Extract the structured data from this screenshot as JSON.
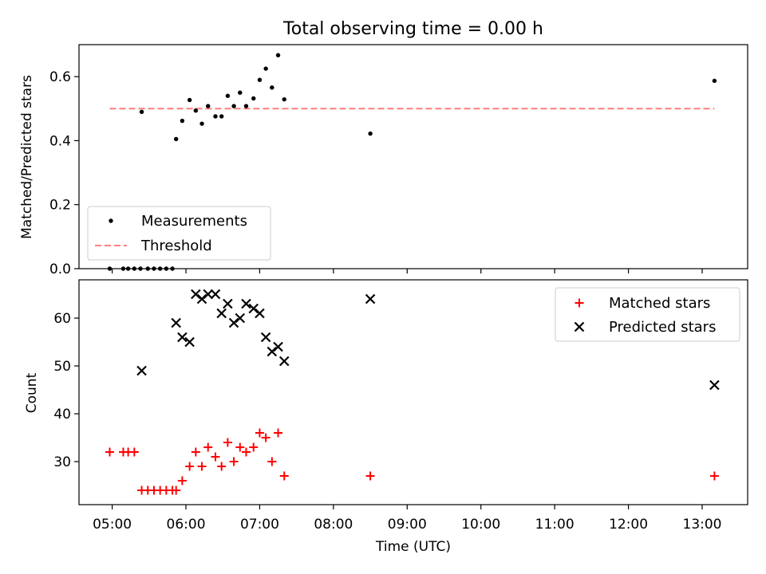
{
  "figure": {
    "title": "Total observing time = 0.00 h",
    "xlabel": "Time (UTC)"
  },
  "chart_data": [
    {
      "type": "scatter",
      "ylabel": "Matched/Predicted stars",
      "ylim": [
        0,
        0.7
      ],
      "yticks": [
        "0.0",
        "0.2",
        "0.4",
        "0.6"
      ],
      "ytick_values": [
        0,
        0.2,
        0.4,
        0.6
      ],
      "xlim": [
        "04:33",
        "13:37"
      ],
      "grid": false,
      "legend": {
        "placement": "lower-left",
        "entries": [
          "Measurements",
          "Threshold"
        ]
      },
      "threshold": {
        "name": "Threshold",
        "value": 0.5,
        "x_range": [
          "04:58",
          "13:10"
        ],
        "color": "#ff7f7f"
      },
      "series": [
        {
          "name": "Measurements",
          "color": "#000000",
          "points": [
            [
              "04:58",
              0.0
            ],
            [
              "05:09",
              0.0
            ],
            [
              "05:13",
              0.0
            ],
            [
              "05:18",
              0.0
            ],
            [
              "05:23",
              0.0
            ],
            [
              "05:24",
              0.49
            ],
            [
              "05:29",
              0.0
            ],
            [
              "05:34",
              0.0
            ],
            [
              "05:39",
              0.0
            ],
            [
              "05:44",
              0.0
            ],
            [
              "05:49",
              0.0
            ],
            [
              "05:52",
              0.405
            ],
            [
              "05:57",
              0.462
            ],
            [
              "06:03",
              0.527
            ],
            [
              "06:08",
              0.494
            ],
            [
              "06:13",
              0.453
            ],
            [
              "06:18",
              0.508
            ],
            [
              "06:24",
              0.476
            ],
            [
              "06:29",
              0.476
            ],
            [
              "06:34",
              0.54
            ],
            [
              "06:39",
              0.508
            ],
            [
              "06:44",
              0.55
            ],
            [
              "06:49",
              0.508
            ],
            [
              "06:55",
              0.532
            ],
            [
              "07:00",
              0.59
            ],
            [
              "07:05",
              0.625
            ],
            [
              "07:10",
              0.566
            ],
            [
              "07:15",
              0.667
            ],
            [
              "07:20",
              0.529
            ],
            [
              "08:30",
              0.422
            ],
            [
              "13:10",
              0.587
            ]
          ]
        }
      ]
    },
    {
      "type": "scatter",
      "ylabel": "Count",
      "ylim": [
        21,
        68
      ],
      "yticks": [
        "30",
        "40",
        "50",
        "60"
      ],
      "ytick_values": [
        30,
        40,
        50,
        60
      ],
      "xticks": [
        "05:00",
        "06:00",
        "07:00",
        "08:00",
        "09:00",
        "10:00",
        "11:00",
        "12:00",
        "13:00"
      ],
      "grid": false,
      "legend": {
        "placement": "upper-right",
        "entries": [
          "Matched stars",
          "Predicted stars"
        ]
      },
      "series": [
        {
          "name": "Matched stars",
          "marker": "plus",
          "color": "#ff0000",
          "points": [
            [
              "04:58",
              32
            ],
            [
              "05:09",
              32
            ],
            [
              "05:13",
              32
            ],
            [
              "05:18",
              32
            ],
            [
              "05:24",
              24
            ],
            [
              "05:29",
              24
            ],
            [
              "05:34",
              24
            ],
            [
              "05:39",
              24
            ],
            [
              "05:44",
              24
            ],
            [
              "05:49",
              24
            ],
            [
              "05:52",
              24
            ],
            [
              "05:57",
              26
            ],
            [
              "06:03",
              29
            ],
            [
              "06:08",
              32
            ],
            [
              "06:13",
              29
            ],
            [
              "06:18",
              33
            ],
            [
              "06:24",
              31
            ],
            [
              "06:29",
              29
            ],
            [
              "06:34",
              34
            ],
            [
              "06:39",
              30
            ],
            [
              "06:44",
              33
            ],
            [
              "06:49",
              32
            ],
            [
              "06:55",
              33
            ],
            [
              "07:00",
              36
            ],
            [
              "07:05",
              35
            ],
            [
              "07:10",
              30
            ],
            [
              "07:15",
              36
            ],
            [
              "07:20",
              27
            ],
            [
              "08:30",
              27
            ],
            [
              "13:10",
              27
            ]
          ]
        },
        {
          "name": "Predicted stars",
          "marker": "x",
          "color": "#000000",
          "points": [
            [
              "05:24",
              49
            ],
            [
              "05:52",
              59
            ],
            [
              "05:57",
              56
            ],
            [
              "06:03",
              55
            ],
            [
              "06:08",
              65
            ],
            [
              "06:13",
              64
            ],
            [
              "06:18",
              65
            ],
            [
              "06:24",
              65
            ],
            [
              "06:29",
              61
            ],
            [
              "06:34",
              63
            ],
            [
              "06:39",
              59
            ],
            [
              "06:44",
              60
            ],
            [
              "06:49",
              63
            ],
            [
              "06:55",
              62
            ],
            [
              "07:00",
              61
            ],
            [
              "07:05",
              56
            ],
            [
              "07:10",
              53
            ],
            [
              "07:15",
              54
            ],
            [
              "07:20",
              51
            ],
            [
              "08:30",
              64
            ],
            [
              "13:10",
              46
            ]
          ]
        }
      ]
    }
  ]
}
